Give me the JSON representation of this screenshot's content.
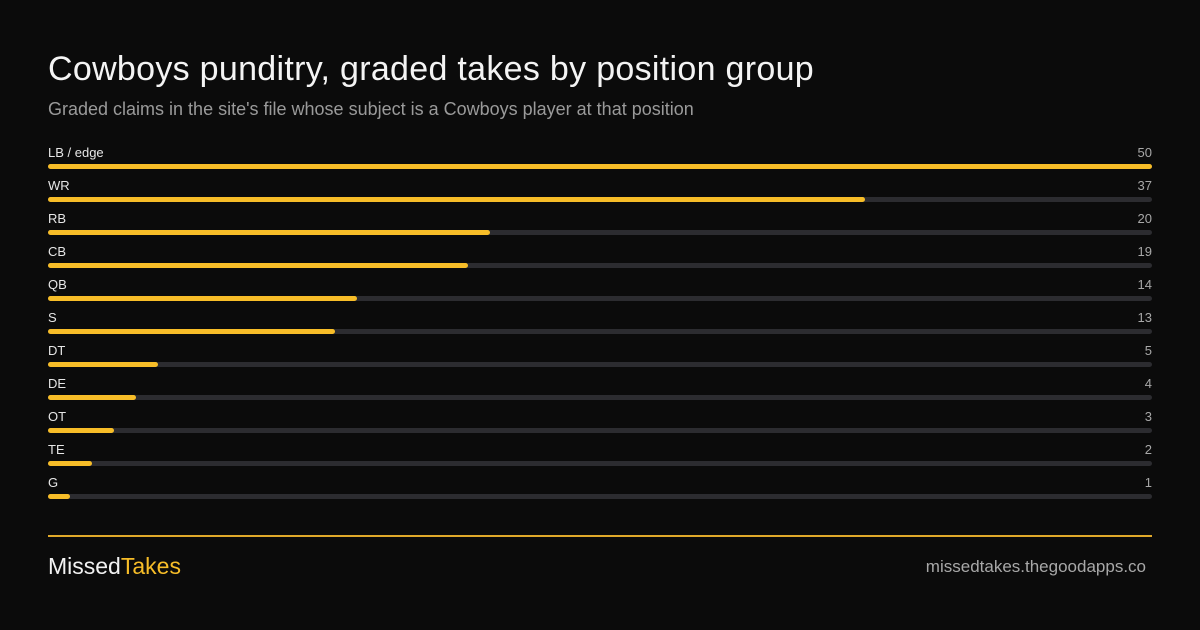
{
  "header": {
    "title": "Cowboys punditry, graded takes by position group",
    "subtitle": "Graded claims in the site's file whose subject is a Cowboys player at that position"
  },
  "colors": {
    "background": "#0b0b0b",
    "accent": "#f7bd28",
    "track": "#2c2c30",
    "muted_text": "#9a9a9a"
  },
  "chart_data": {
    "type": "bar",
    "orientation": "horizontal",
    "categories": [
      "LB / edge",
      "WR",
      "RB",
      "CB",
      "QB",
      "S",
      "DT",
      "DE",
      "OT",
      "TE",
      "G"
    ],
    "values": [
      50,
      37,
      20,
      19,
      14,
      13,
      5,
      4,
      3,
      2,
      1
    ],
    "title": "Cowboys punditry, graded takes by position group",
    "subtitle": "Graded claims in the site's file whose subject is a Cowboys player at that position",
    "xlim": [
      0,
      50
    ],
    "grid": false,
    "legend": "none"
  },
  "footer": {
    "brand_part1": "Missed",
    "brand_part2": "Takes",
    "site": "missedtakes.thegoodapps.co"
  }
}
